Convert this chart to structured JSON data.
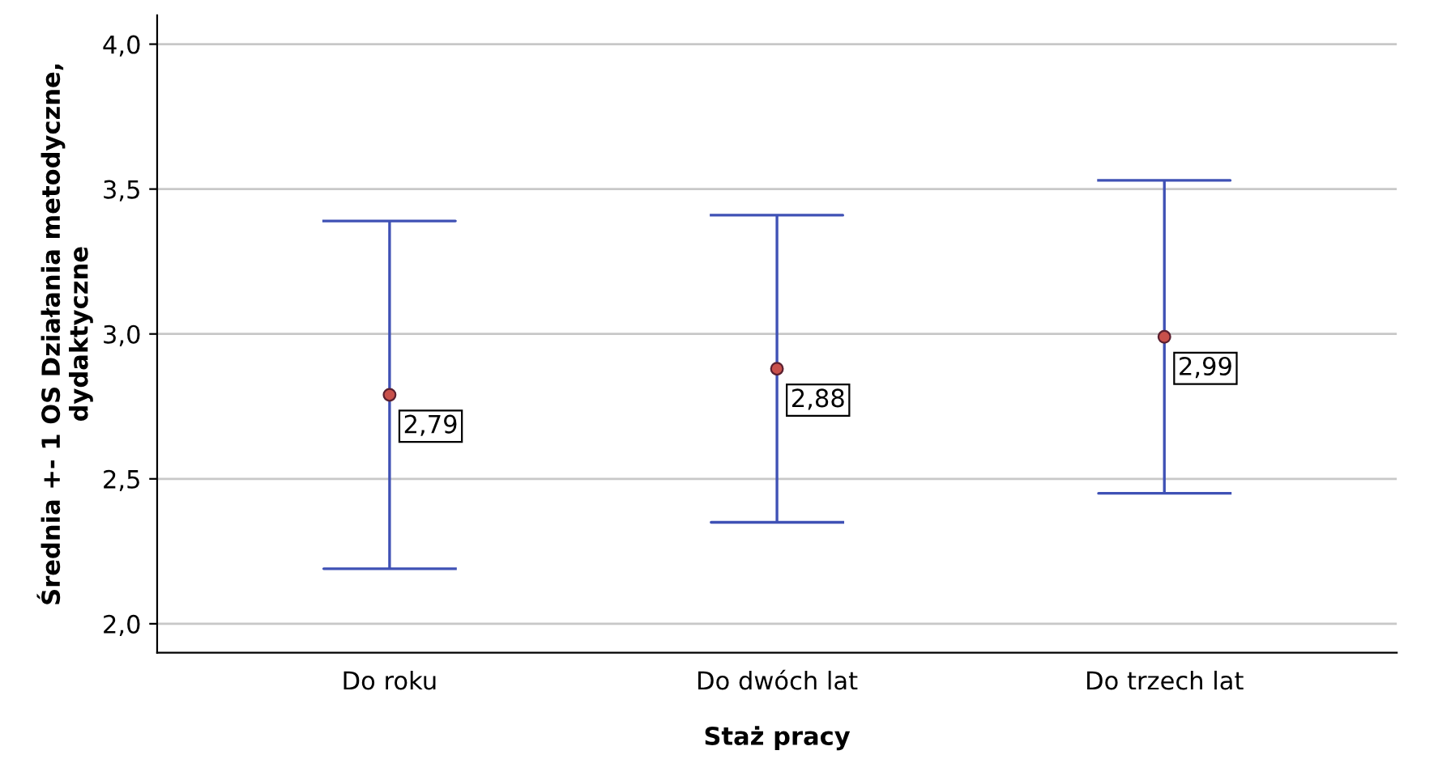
{
  "chart_data": {
    "type": "scatter",
    "xlabel": "Staż pracy",
    "ylabel": "Średnia +- 1 OS Działania metodyczne, dydaktyczne",
    "categories": [
      "Do roku",
      "Do dwóch lat",
      "Do trzech lat"
    ],
    "series": [
      {
        "color": "#3f51b5",
        "colors": [
          "#c8504b",
          "#c8504b",
          "#c8504b"
        ],
        "values": [
          2.79,
          2.88,
          2.99
        ],
        "errors": [
          0.6,
          0.53,
          0.54
        ],
        "value_labels": [
          "2,79",
          "2,88",
          "2,99"
        ]
      }
    ],
    "ylim": [
      1.9,
      4.1
    ],
    "yticks": [
      {
        "value": 2.0,
        "label": "2,0"
      },
      {
        "value": 2.5,
        "label": "2,5"
      },
      {
        "value": 3.0,
        "label": "3,0"
      },
      {
        "value": 3.5,
        "label": "3,5"
      },
      {
        "value": 4.0,
        "label": "4,0"
      }
    ],
    "grid": "y",
    "marker": "circle"
  }
}
